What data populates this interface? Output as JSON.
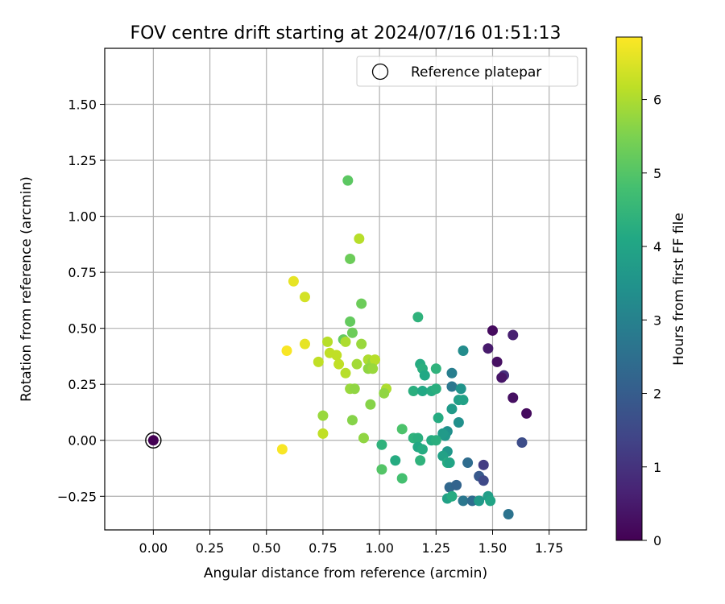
{
  "chart_data": {
    "type": "scatter",
    "title": "FOV centre drift starting at 2024/07/16 01:51:13",
    "xlabel": "Angular distance from reference (arcmin)",
    "ylabel": "Rotation from reference (arcmin)",
    "xlim": [
      -0.215,
      1.915
    ],
    "ylim": [
      -0.4,
      1.75
    ],
    "xticks": [
      0.0,
      0.25,
      0.5,
      0.75,
      1.0,
      1.25,
      1.5,
      1.75
    ],
    "xtick_labels": [
      "0.00",
      "0.25",
      "0.50",
      "0.75",
      "1.00",
      "1.25",
      "1.50",
      "1.75"
    ],
    "yticks": [
      -0.25,
      0.0,
      0.25,
      0.5,
      0.75,
      1.0,
      1.25,
      1.5
    ],
    "ytick_labels": [
      "−0.25",
      "0.00",
      "0.25",
      "0.50",
      "0.75",
      "1.00",
      "1.25",
      "1.50"
    ],
    "grid": true,
    "legend_position": "top-right",
    "reference": {
      "label": "Reference platepar",
      "x": 0.0,
      "y": 0.0
    },
    "colorbar": {
      "label": "Hours from first FF file",
      "colormap": "viridis",
      "min": 0,
      "max": 6.85,
      "ticks": [
        0,
        1,
        2,
        3,
        4,
        5,
        6
      ],
      "tick_labels": [
        "0",
        "1",
        "2",
        "3",
        "4",
        "5",
        "6"
      ]
    },
    "points": [
      {
        "x": 0.0,
        "y": 0.0,
        "t": 0.0
      },
      {
        "x": 1.5,
        "y": 0.49,
        "t": 0.2
      },
      {
        "x": 1.59,
        "y": 0.47,
        "t": 0.6
      },
      {
        "x": 1.48,
        "y": 0.41,
        "t": 0.5
      },
      {
        "x": 1.52,
        "y": 0.35,
        "t": 0.3
      },
      {
        "x": 1.55,
        "y": 0.29,
        "t": 0.9
      },
      {
        "x": 1.54,
        "y": 0.28,
        "t": 0.4
      },
      {
        "x": 1.59,
        "y": 0.19,
        "t": 0.3
      },
      {
        "x": 1.65,
        "y": 0.12,
        "t": 0.2
      },
      {
        "x": 1.63,
        "y": -0.01,
        "t": 1.6
      },
      {
        "x": 1.46,
        "y": -0.11,
        "t": 1.2
      },
      {
        "x": 1.44,
        "y": -0.16,
        "t": 1.9
      },
      {
        "x": 1.46,
        "y": -0.18,
        "t": 1.5
      },
      {
        "x": 1.39,
        "y": -0.1,
        "t": 2.4
      },
      {
        "x": 1.57,
        "y": -0.33,
        "t": 2.6
      },
      {
        "x": 1.31,
        "y": -0.21,
        "t": 2.3
      },
      {
        "x": 1.34,
        "y": -0.2,
        "t": 2.2
      },
      {
        "x": 1.37,
        "y": -0.27,
        "t": 2.7
      },
      {
        "x": 1.41,
        "y": -0.27,
        "t": 2.4
      },
      {
        "x": 1.48,
        "y": -0.25,
        "t": 3.8
      },
      {
        "x": 1.49,
        "y": -0.27,
        "t": 4.0
      },
      {
        "x": 1.44,
        "y": -0.27,
        "t": 3.7
      },
      {
        "x": 1.32,
        "y": 0.3,
        "t": 2.9
      },
      {
        "x": 1.32,
        "y": 0.24,
        "t": 2.7
      },
      {
        "x": 1.37,
        "y": 0.4,
        "t": 3.3
      },
      {
        "x": 1.36,
        "y": 0.23,
        "t": 3.5
      },
      {
        "x": 1.35,
        "y": 0.18,
        "t": 3.8
      },
      {
        "x": 1.37,
        "y": 0.18,
        "t": 3.9
      },
      {
        "x": 1.32,
        "y": 0.14,
        "t": 3.7
      },
      {
        "x": 1.35,
        "y": 0.08,
        "t": 3.4
      },
      {
        "x": 1.3,
        "y": 0.04,
        "t": 3.4
      },
      {
        "x": 1.29,
        "y": 0.02,
        "t": 3.6
      },
      {
        "x": 1.28,
        "y": 0.03,
        "t": 3.7
      },
      {
        "x": 1.3,
        "y": -0.05,
        "t": 3.6
      },
      {
        "x": 1.28,
        "y": -0.07,
        "t": 3.9
      },
      {
        "x": 1.3,
        "y": -0.1,
        "t": 4.2
      },
      {
        "x": 1.31,
        "y": -0.1,
        "t": 4.0
      },
      {
        "x": 1.3,
        "y": -0.26,
        "t": 3.9
      },
      {
        "x": 1.32,
        "y": -0.25,
        "t": 4.2
      },
      {
        "x": 1.17,
        "y": 0.55,
        "t": 4.4
      },
      {
        "x": 1.18,
        "y": 0.34,
        "t": 4.2
      },
      {
        "x": 1.19,
        "y": 0.32,
        "t": 4.3
      },
      {
        "x": 1.2,
        "y": 0.29,
        "t": 4.1
      },
      {
        "x": 1.25,
        "y": 0.32,
        "t": 4.4
      },
      {
        "x": 1.15,
        "y": 0.22,
        "t": 4.3
      },
      {
        "x": 1.19,
        "y": 0.22,
        "t": 4.1
      },
      {
        "x": 1.23,
        "y": 0.22,
        "t": 4.2
      },
      {
        "x": 1.25,
        "y": 0.23,
        "t": 4.3
      },
      {
        "x": 1.26,
        "y": 0.1,
        "t": 4.2
      },
      {
        "x": 1.15,
        "y": 0.01,
        "t": 4.4
      },
      {
        "x": 1.17,
        "y": 0.01,
        "t": 4.3
      },
      {
        "x": 1.23,
        "y": 0.0,
        "t": 4.2
      },
      {
        "x": 1.25,
        "y": 0.0,
        "t": 4.3
      },
      {
        "x": 1.17,
        "y": -0.03,
        "t": 4.1
      },
      {
        "x": 1.19,
        "y": -0.04,
        "t": 4.2
      },
      {
        "x": 1.18,
        "y": -0.09,
        "t": 4.4
      },
      {
        "x": 1.07,
        "y": -0.09,
        "t": 4.2
      },
      {
        "x": 1.01,
        "y": -0.02,
        "t": 4.4
      },
      {
        "x": 1.1,
        "y": 0.05,
        "t": 4.9
      },
      {
        "x": 1.01,
        "y": -0.13,
        "t": 5.0
      },
      {
        "x": 1.1,
        "y": -0.17,
        "t": 4.8
      },
      {
        "x": 0.86,
        "y": 1.16,
        "t": 5.1
      },
      {
        "x": 0.87,
        "y": 0.81,
        "t": 5.3
      },
      {
        "x": 0.91,
        "y": 0.9,
        "t": 6.1
      },
      {
        "x": 0.87,
        "y": 0.53,
        "t": 5.2
      },
      {
        "x": 0.92,
        "y": 0.61,
        "t": 5.3
      },
      {
        "x": 0.88,
        "y": 0.48,
        "t": 5.3
      },
      {
        "x": 0.84,
        "y": 0.45,
        "t": 5.2
      },
      {
        "x": 0.92,
        "y": 0.43,
        "t": 5.8
      },
      {
        "x": 0.85,
        "y": 0.44,
        "t": 6.0
      },
      {
        "x": 0.77,
        "y": 0.44,
        "t": 6.1
      },
      {
        "x": 0.95,
        "y": 0.36,
        "t": 6.0
      },
      {
        "x": 0.97,
        "y": 0.35,
        "t": 5.8
      },
      {
        "x": 0.98,
        "y": 0.36,
        "t": 6.1
      },
      {
        "x": 0.95,
        "y": 0.32,
        "t": 5.7
      },
      {
        "x": 0.97,
        "y": 0.32,
        "t": 5.8
      },
      {
        "x": 0.9,
        "y": 0.34,
        "t": 5.9
      },
      {
        "x": 0.78,
        "y": 0.39,
        "t": 6.2
      },
      {
        "x": 0.81,
        "y": 0.38,
        "t": 6.2
      },
      {
        "x": 0.82,
        "y": 0.34,
        "t": 6.2
      },
      {
        "x": 0.73,
        "y": 0.35,
        "t": 6.2
      },
      {
        "x": 0.85,
        "y": 0.3,
        "t": 6.1
      },
      {
        "x": 0.87,
        "y": 0.23,
        "t": 5.8
      },
      {
        "x": 0.89,
        "y": 0.23,
        "t": 5.7
      },
      {
        "x": 1.03,
        "y": 0.23,
        "t": 6.0
      },
      {
        "x": 1.02,
        "y": 0.21,
        "t": 5.7
      },
      {
        "x": 0.96,
        "y": 0.16,
        "t": 5.6
      },
      {
        "x": 0.75,
        "y": 0.11,
        "t": 5.8
      },
      {
        "x": 0.88,
        "y": 0.09,
        "t": 5.6
      },
      {
        "x": 0.93,
        "y": 0.01,
        "t": 5.7
      },
      {
        "x": 0.75,
        "y": 0.03,
        "t": 6.2
      },
      {
        "x": 0.62,
        "y": 0.71,
        "t": 6.6
      },
      {
        "x": 0.67,
        "y": 0.64,
        "t": 6.4
      },
      {
        "x": 0.67,
        "y": 0.43,
        "t": 6.6
      },
      {
        "x": 0.59,
        "y": 0.4,
        "t": 6.8
      },
      {
        "x": 0.57,
        "y": -0.04,
        "t": 6.8
      }
    ]
  }
}
